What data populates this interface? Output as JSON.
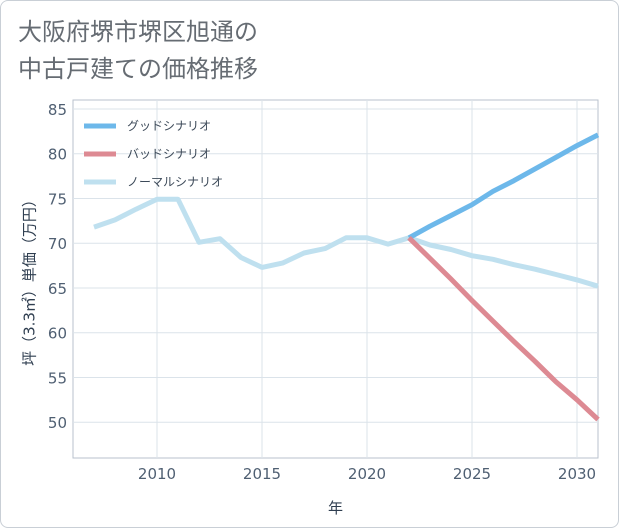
{
  "title_lines": [
    "大阪府堺市堺区旭通の",
    "中古戸建ての価格推移"
  ],
  "chart_data": {
    "type": "line",
    "title": "大阪府堺市堺区旭通の中古戸建ての価格推移",
    "xlabel": "年",
    "ylabel": "坪（3.3㎡）単価（万円）",
    "xlim": [
      2006,
      2031
    ],
    "ylim": [
      46,
      86
    ],
    "xticks": [
      2010,
      2015,
      2020,
      2025,
      2030
    ],
    "yticks": [
      50,
      55,
      60,
      65,
      70,
      75,
      80,
      85
    ],
    "grid": true,
    "legend_position": "top-left",
    "series": [
      {
        "name": "グッドシナリオ",
        "color": "#6db8ea",
        "x": [
          2022,
          2023,
          2024,
          2025,
          2026,
          2027,
          2028,
          2029,
          2030,
          2031
        ],
        "y": [
          70.6,
          71.9,
          73.1,
          74.3,
          75.8,
          77.0,
          78.3,
          79.6,
          80.9,
          82.1
        ]
      },
      {
        "name": "バッドシナリオ",
        "color": "#dd8a93",
        "x": [
          2022,
          2023,
          2024,
          2025,
          2026,
          2027,
          2028,
          2029,
          2030,
          2031
        ],
        "y": [
          70.6,
          68.3,
          66.0,
          63.6,
          61.3,
          59.0,
          56.8,
          54.5,
          52.5,
          50.3
        ]
      },
      {
        "name": "ノーマルシナリオ",
        "color": "#bfe0ef",
        "x": [
          2007,
          2008,
          2009,
          2010,
          2011,
          2012,
          2013,
          2014,
          2015,
          2016,
          2017,
          2018,
          2019,
          2020,
          2021,
          2022,
          2023,
          2024,
          2025,
          2026,
          2027,
          2028,
          2029,
          2030,
          2031
        ],
        "y": [
          71.8,
          72.6,
          73.8,
          74.9,
          74.9,
          70.1,
          70.5,
          68.4,
          67.3,
          67.8,
          68.9,
          69.4,
          70.6,
          70.6,
          69.9,
          70.6,
          69.8,
          69.3,
          68.6,
          68.2,
          67.6,
          67.1,
          66.5,
          65.9,
          65.2
        ]
      }
    ]
  }
}
